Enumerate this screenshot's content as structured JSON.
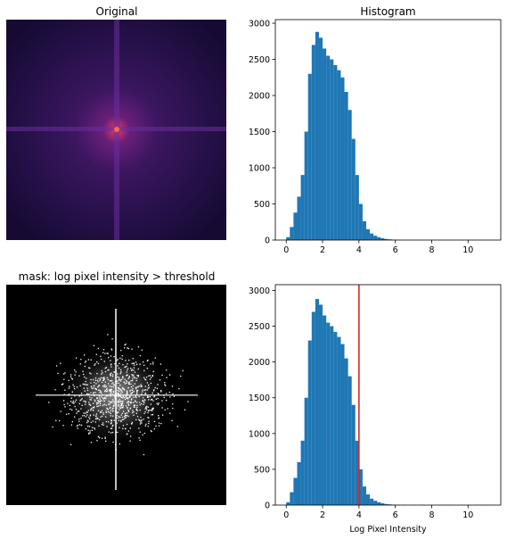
{
  "panels": {
    "original": {
      "title": "Original",
      "image": "log-magnitude 2D Fourier spectrum, magma colormap, bright central peak with horizontal and vertical streaks"
    },
    "mask": {
      "title": "mask: log pixel intensity > threshold",
      "image": "binary mask, white pixels on black, centered star-shaped cluster with horizontal and vertical streaks"
    }
  },
  "colors": {
    "bar": "#1f77b4",
    "threshold_line": "#d62728",
    "spectrum_dark": "#1a0a3a",
    "spectrum_peak": "#ff4f3a"
  },
  "chart_data": [
    {
      "type": "bar",
      "title": "Histogram",
      "xlabel": "",
      "ylabel": "",
      "xlim": [
        -0.6,
        11.8
      ],
      "ylim": [
        0,
        3050
      ],
      "xticks": [
        0,
        2,
        4,
        6,
        8,
        10
      ],
      "yticks": [
        0,
        500,
        1000,
        1500,
        2000,
        2500,
        3000
      ],
      "bin_centers": [
        0.1,
        0.3,
        0.5,
        0.7,
        0.9,
        1.1,
        1.3,
        1.5,
        1.7,
        1.9,
        2.1,
        2.3,
        2.5,
        2.7,
        2.9,
        3.1,
        3.3,
        3.5,
        3.7,
        3.9,
        4.1,
        4.3,
        4.5,
        4.7,
        4.9,
        5.1,
        5.3,
        5.5,
        5.7,
        5.9,
        6.1
      ],
      "values": [
        40,
        180,
        380,
        600,
        900,
        1500,
        2300,
        2700,
        2880,
        2800,
        2650,
        2550,
        2500,
        2420,
        2350,
        2250,
        2050,
        1800,
        1400,
        900,
        500,
        260,
        150,
        90,
        60,
        40,
        25,
        15,
        10,
        6,
        4
      ],
      "bin_width": 0.2
    },
    {
      "type": "bar",
      "title": "",
      "xlabel": "Log Pixel Intensity",
      "ylabel": "",
      "xlim": [
        -0.6,
        11.8
      ],
      "ylim": [
        0,
        3080
      ],
      "xticks": [
        0,
        2,
        4,
        6,
        8,
        10
      ],
      "yticks": [
        0,
        500,
        1000,
        1500,
        2000,
        2500,
        3000
      ],
      "bin_centers": [
        0.1,
        0.3,
        0.5,
        0.7,
        0.9,
        1.1,
        1.3,
        1.5,
        1.7,
        1.9,
        2.1,
        2.3,
        2.5,
        2.7,
        2.9,
        3.1,
        3.3,
        3.5,
        3.7,
        3.9,
        4.1,
        4.3,
        4.5,
        4.7,
        4.9,
        5.1,
        5.3,
        5.5,
        5.7,
        5.9,
        6.1,
        6.5,
        7.0,
        7.5,
        8.0,
        8.5,
        9.0,
        9.5,
        10.0,
        10.5,
        11.0
      ],
      "values": [
        40,
        180,
        380,
        600,
        900,
        1500,
        2300,
        2700,
        2880,
        2800,
        2650,
        2550,
        2500,
        2420,
        2350,
        2250,
        2050,
        1800,
        1400,
        900,
        500,
        260,
        150,
        90,
        60,
        40,
        25,
        15,
        10,
        6,
        4,
        3,
        3,
        3,
        2,
        2,
        2,
        2,
        2,
        2,
        2
      ],
      "bin_width": 0.2,
      "threshold": 4.0
    }
  ]
}
